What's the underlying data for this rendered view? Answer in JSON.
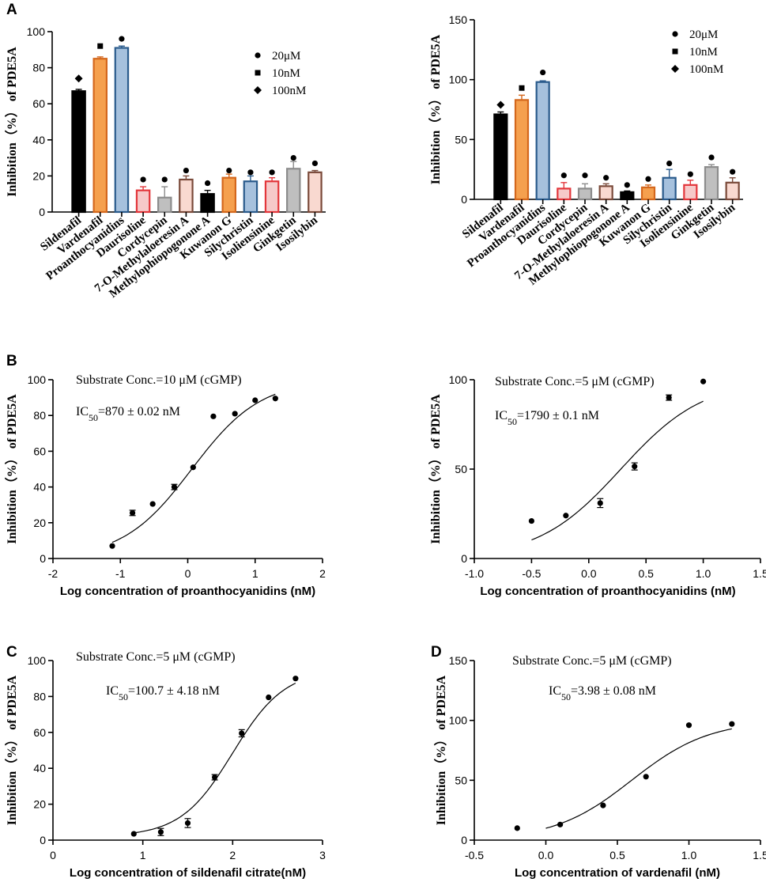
{
  "chart_data": [
    {
      "panel": "A",
      "type": "bar",
      "ylabel": "Inhibition（%） of PDE5A",
      "ylim": [
        0,
        100
      ],
      "yticks": [
        0,
        20,
        40,
        60,
        80,
        100
      ],
      "categories": [
        "Sildenafil",
        "Vardenafil",
        "Proanthocyanidins",
        "Daurisoline",
        "Cordycepin",
        "7-O-Methylaloeresin A",
        "Methylophiopogonone A",
        "Kuwanon G",
        "Silychristin",
        "Isoliensinine",
        "Ginkgetin",
        "Isosilybin"
      ],
      "values": [
        67,
        85,
        91,
        12,
        8,
        18,
        10,
        19,
        17,
        17,
        24,
        22
      ],
      "errors": [
        1,
        1,
        1,
        2,
        6,
        2,
        2,
        2,
        3,
        2,
        4,
        1
      ],
      "markers": [
        74,
        92,
        96,
        18,
        18,
        23,
        16,
        23,
        22,
        22,
        30,
        27
      ],
      "marker_shapes": [
        "diamond",
        "square",
        "circle",
        "circle",
        "circle",
        "circle",
        "circle",
        "circle",
        "circle",
        "circle",
        "circle",
        "circle"
      ],
      "colors": [
        "#000000",
        "#f5a04e",
        "#a6c1dd",
        "#f6c9c9",
        "#bfbfbf",
        "#f9d9d0",
        "#000000",
        "#f5a04e",
        "#a6c1dd",
        "#f6c9c9",
        "#bfbfbf",
        "#f9d9d0"
      ],
      "edge_colors": [
        "#000000",
        "#d4671c",
        "#2a5b8c",
        "#e3363b",
        "#8c8c8c",
        "#7a4a3a",
        "#000000",
        "#d4671c",
        "#2a5b8c",
        "#e3363b",
        "#8c8c8c",
        "#7a4a3a"
      ],
      "legend": [
        {
          "shape": "circle",
          "label": "20μM"
        },
        {
          "shape": "square",
          "label": "10nM"
        },
        {
          "shape": "diamond",
          "label": "100nM"
        }
      ]
    },
    {
      "panel": "",
      "type": "bar",
      "ylabel": "Inhibition（%） of PDE5A",
      "ylim": [
        0,
        150
      ],
      "yticks": [
        0,
        50,
        100,
        150
      ],
      "categories": [
        "Sildenafil",
        "Vardenafil",
        "Proanthocyanidins",
        "Daurisoline",
        "Cordycepin",
        "7-O-Methylaloeresin A",
        "Methylophiopogonone A",
        "Kuwanon G",
        "Silychristin",
        "Isoliensinine",
        "Ginkgetin",
        "Isosilybin"
      ],
      "values": [
        71,
        83,
        98,
        9,
        9,
        11,
        6,
        10,
        18,
        12,
        27,
        14
      ],
      "errors": [
        2,
        4,
        1,
        5,
        4,
        2,
        1,
        2,
        7,
        4,
        2,
        4
      ],
      "markers": [
        79,
        93,
        106,
        20,
        20,
        18,
        12,
        17,
        30,
        21,
        35,
        23
      ],
      "marker_shapes": [
        "diamond",
        "square",
        "circle",
        "circle",
        "circle",
        "circle",
        "circle",
        "circle",
        "circle",
        "circle",
        "circle",
        "circle"
      ],
      "colors": [
        "#000000",
        "#f5a04e",
        "#a6c1dd",
        "#f6c9c9",
        "#bfbfbf",
        "#f9d9d0",
        "#000000",
        "#f5a04e",
        "#a6c1dd",
        "#f6c9c9",
        "#bfbfbf",
        "#f9d9d0"
      ],
      "edge_colors": [
        "#000000",
        "#d4671c",
        "#2a5b8c",
        "#e3363b",
        "#8c8c8c",
        "#7a4a3a",
        "#000000",
        "#d4671c",
        "#2a5b8c",
        "#e3363b",
        "#8c8c8c",
        "#7a4a3a"
      ],
      "legend": [
        {
          "shape": "circle",
          "label": "20μM"
        },
        {
          "shape": "square",
          "label": "10nM"
        },
        {
          "shape": "diamond",
          "label": "100nM"
        }
      ]
    },
    {
      "panel": "B",
      "type": "scatter",
      "title": "Substrate Conc.=10 μM (cGMP)",
      "ic50_prefix": "IC",
      "ic50_sub": "50",
      "ic50_value": "=870 ± 0.02 nM",
      "xlabel": "Log concentration of proanthocyanidins (nM)",
      "ylabel": "Inhibition（%） of PDE5A",
      "xlim": [
        -2,
        2
      ],
      "xticks": [
        "-2",
        "-1",
        "0",
        "1",
        "2"
      ],
      "xtick_values": [
        -2,
        -1,
        0,
        1,
        2
      ],
      "ylim": [
        0,
        100
      ],
      "yticks": [
        0,
        20,
        40,
        60,
        80,
        100
      ],
      "x": [
        -1.12,
        -0.82,
        -0.52,
        -0.2,
        0.08,
        0.38,
        0.7,
        1.0,
        1.3
      ],
      "y": [
        7,
        25.5,
        30.5,
        40,
        51,
        79.5,
        81,
        88.5,
        89.5
      ],
      "err": [
        0,
        1.5,
        0,
        1.5,
        0,
        0,
        0,
        0,
        0
      ],
      "fit": {
        "bottom": 0,
        "top": 100,
        "logIC50": 0.06,
        "hill": 0.85,
        "x_from": -1.12,
        "x_to": 1.3
      }
    },
    {
      "panel": "",
      "type": "scatter",
      "title": "Substrate Conc.=5 μM (cGMP)",
      "ic50_prefix": "IC",
      "ic50_sub": "50",
      "ic50_value": "=1790 ± 0.1 nM",
      "xlabel": "Log concentration of proanthocyanidins (nM)",
      "ylabel": "Inhibition（%） of PDE5A",
      "xlim": [
        -1.0,
        1.5
      ],
      "xticks": [
        "-1.0",
        "-0.5",
        "0.0",
        "0.5",
        "1.0",
        "1.5"
      ],
      "xtick_values": [
        -1.0,
        -0.5,
        0.0,
        0.5,
        1.0,
        1.5
      ],
      "ylim": [
        0,
        100
      ],
      "yticks": [
        0,
        50,
        100
      ],
      "x": [
        -0.5,
        -0.2,
        0.1,
        0.4,
        0.7,
        1.0
      ],
      "y": [
        21,
        24,
        31,
        51.5,
        90,
        99
      ],
      "err": [
        0,
        0,
        2.5,
        2,
        1.5,
        0
      ],
      "fit": {
        "bottom": 0,
        "top": 100,
        "logIC50": 0.28,
        "hill": 1.2,
        "x_from": -0.5,
        "x_to": 1.0
      }
    },
    {
      "panel": "C",
      "type": "scatter",
      "title": "Substrate Conc.=5 μM (cGMP)",
      "ic50_prefix": "IC",
      "ic50_sub": "50",
      "ic50_value": "=100.7 ± 4.18 nM",
      "xlabel": "Log concentration of sildenafil citrate(nM)",
      "ylabel": "Inhibition（%） of PDE5A",
      "xlim": [
        0,
        3
      ],
      "xticks": [
        "0",
        "1",
        "2",
        "3"
      ],
      "xtick_values": [
        0,
        1,
        2,
        3
      ],
      "ylim": [
        0,
        100
      ],
      "yticks": [
        0,
        20,
        40,
        60,
        80,
        100
      ],
      "x": [
        0.9,
        1.2,
        1.5,
        1.8,
        2.1,
        2.4,
        2.7
      ],
      "y": [
        3.5,
        4.5,
        9.5,
        35,
        59.5,
        79.5,
        90
      ],
      "err": [
        0,
        2,
        2.5,
        1.5,
        2,
        0,
        0
      ],
      "fit": {
        "bottom": 2,
        "top": 95,
        "logIC50": 2.0,
        "hill": 1.5,
        "x_from": 0.9,
        "x_to": 2.7
      }
    },
    {
      "panel": "D",
      "type": "scatter",
      "title": "Substrate Conc.=5 μM (cGMP)",
      "ic50_prefix": "IC",
      "ic50_sub": "50",
      "ic50_value": "=3.98 ± 0.08 nM",
      "xlabel": "Log concentration of vardenafil (nM)",
      "ylabel": "Inhibition（%） of PDE5A",
      "xlim": [
        -0.5,
        1.5
      ],
      "xticks": [
        "-0.5",
        "0.0",
        "0.5",
        "1.0",
        "1.5"
      ],
      "xtick_values": [
        -0.5,
        0.0,
        0.5,
        1.0,
        1.5
      ],
      "ylim": [
        0,
        150
      ],
      "yticks": [
        0,
        50,
        100,
        150
      ],
      "x": [
        -0.2,
        0.1,
        0.4,
        0.7,
        1.0,
        1.3
      ],
      "y": [
        10,
        13,
        29,
        53,
        96,
        97
      ],
      "err": [
        0,
        0,
        0,
        0,
        0,
        0
      ],
      "fit": {
        "bottom": 0,
        "top": 100,
        "logIC50": 0.6,
        "hill": 1.6,
        "x_from": 0.0,
        "x_to": 1.3
      }
    }
  ]
}
